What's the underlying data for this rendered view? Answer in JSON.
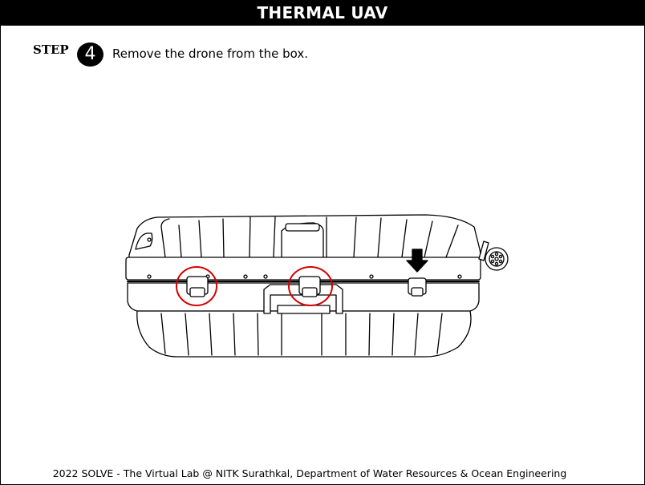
{
  "header": {
    "title": "THERMAL UAV"
  },
  "step": {
    "label": "STEP",
    "number": "4",
    "instruction": "Remove the drone from the box."
  },
  "illustration": {
    "subject": "hard-case",
    "highlighted_latches": 2,
    "highlight_color": "#d40000",
    "arrow_icon": "down-arrow-icon"
  },
  "footer": {
    "credit": "2022 SOLVE - The Virtual Lab @ NITK Surathkal, Department of Water Resources & Ocean Engineering"
  }
}
